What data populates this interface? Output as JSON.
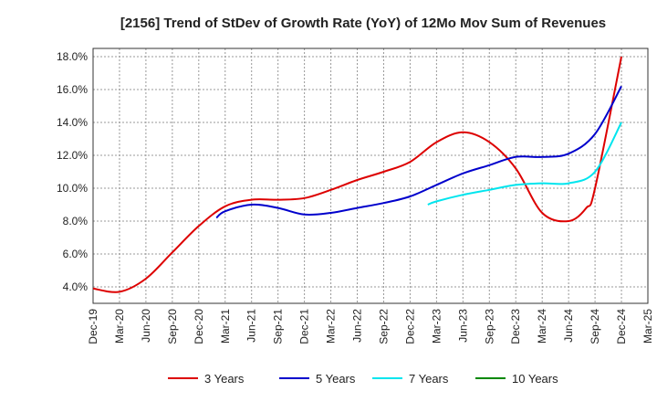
{
  "chart_data": {
    "type": "line",
    "title": "[2156]  Trend of StDev of Growth Rate (YoY) of 12Mo Mov Sum of Revenues",
    "xlabel": "",
    "ylabel": "",
    "ylim": [
      3.0,
      18.5
    ],
    "yticks": [
      4.0,
      6.0,
      8.0,
      10.0,
      12.0,
      14.0,
      16.0,
      18.0
    ],
    "ytick_labels": [
      "4.0%",
      "6.0%",
      "8.0%",
      "10.0%",
      "12.0%",
      "14.0%",
      "16.0%",
      "18.0%"
    ],
    "x_ticks": [
      "Dec-19",
      "Mar-20",
      "Jun-20",
      "Sep-20",
      "Dec-20",
      "Mar-21",
      "Jun-21",
      "Sep-21",
      "Dec-21",
      "Mar-22",
      "Jun-22",
      "Sep-22",
      "Dec-22",
      "Mar-23",
      "Jun-23",
      "Sep-23",
      "Dec-23",
      "Mar-24",
      "Jun-24",
      "Sep-24",
      "Dec-24",
      "Mar-25"
    ],
    "grid": true,
    "legend_position": "bottom",
    "series": [
      {
        "name": "3 Years",
        "color": "#dd0000",
        "x": [
          0,
          1,
          2,
          3,
          4,
          5,
          6,
          7,
          8,
          9,
          10,
          11,
          12,
          13,
          14,
          15,
          16,
          17,
          18,
          18.67,
          19,
          20
        ],
        "values": [
          3.9,
          3.7,
          4.5,
          6.1,
          7.7,
          8.9,
          9.3,
          9.3,
          9.4,
          9.9,
          10.5,
          11.0,
          11.6,
          12.8,
          13.4,
          12.8,
          11.2,
          8.5,
          8.0,
          8.8,
          10.0,
          18.0
        ]
      },
      {
        "name": "5 Years",
        "color": "#0000cc",
        "x": [
          4.67,
          5,
          6,
          7,
          8,
          9,
          10,
          11,
          12,
          13,
          14,
          15,
          16,
          17,
          18,
          19,
          20
        ],
        "values": [
          8.2,
          8.6,
          9.0,
          8.8,
          8.4,
          8.5,
          8.8,
          9.1,
          9.5,
          10.2,
          10.9,
          11.4,
          11.9,
          11.9,
          12.1,
          13.3,
          16.2
        ]
      },
      {
        "name": "7 Years",
        "color": "#00e5ee",
        "x": [
          12.67,
          13,
          14,
          15,
          16,
          17,
          18,
          19,
          20
        ],
        "values": [
          9.0,
          9.2,
          9.6,
          9.9,
          10.2,
          10.3,
          10.3,
          11.0,
          14.0
        ]
      },
      {
        "name": "10 Years",
        "color": "#008800",
        "x": [],
        "values": []
      }
    ]
  }
}
